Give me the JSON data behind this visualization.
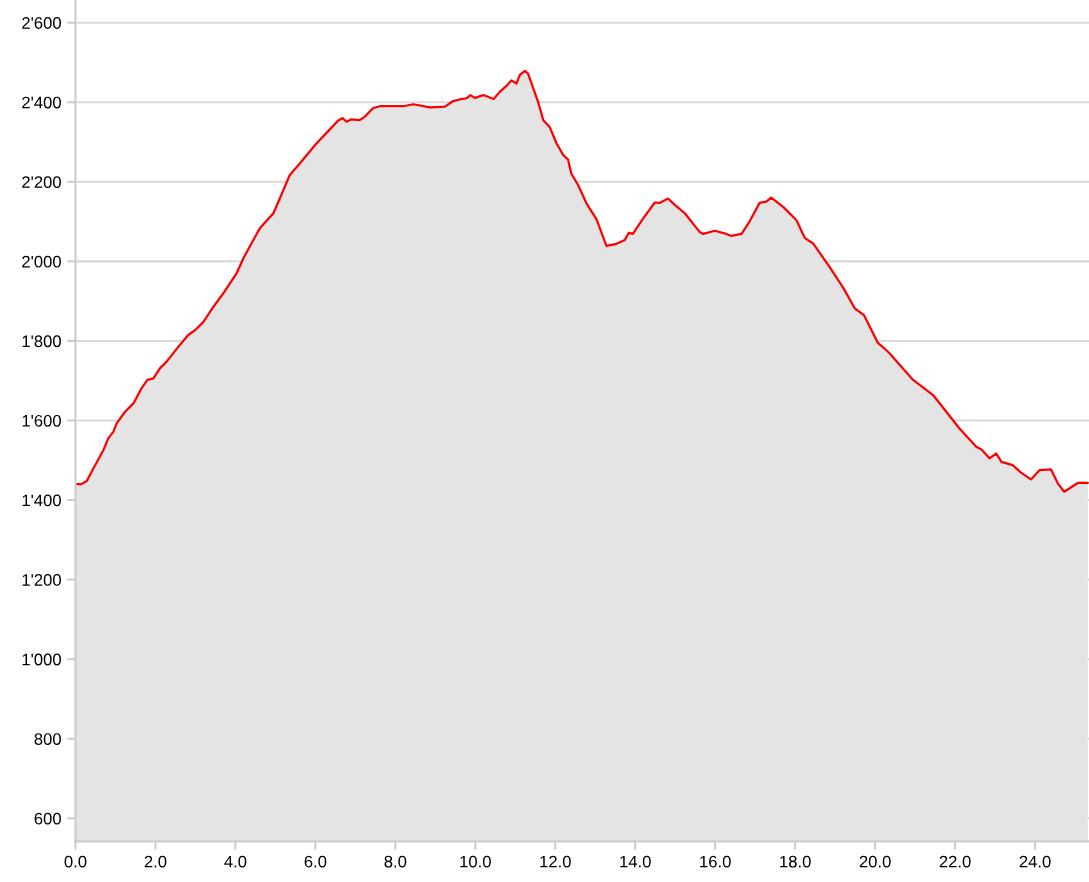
{
  "chart_data": {
    "type": "area",
    "x": [
      0,
      0.15,
      0.28,
      0.45,
      0.7,
      0.82,
      0.95,
      1.03,
      1.24,
      1.45,
      1.65,
      1.8,
      1.95,
      2.11,
      2.28,
      2.57,
      2.82,
      2.99,
      3.2,
      3.45,
      3.7,
      4.03,
      4.2,
      4.4,
      4.61,
      4.95,
      5.11,
      5.36,
      5.61,
      6.03,
      6.28,
      6.57,
      6.68,
      6.78,
      6.9,
      7.11,
      7.24,
      7.44,
      7.61,
      8.2,
      8.45,
      8.86,
      9.24,
      9.45,
      9.61,
      9.78,
      9.88,
      9.99,
      10.2,
      10.46,
      10.61,
      10.78,
      10.9,
      11.03,
      11.11,
      11.24,
      11.32,
      11.45,
      11.57,
      11.7,
      11.86,
      12.03,
      12.2,
      12.32,
      12.4,
      12.57,
      12.78,
      13.03,
      13.28,
      13.53,
      13.74,
      13.84,
      13.94,
      14.2,
      14.49,
      14.61,
      14.82,
      14.99,
      15.24,
      15.61,
      15.7,
      15.99,
      16.28,
      16.4,
      16.66,
      16.86,
      17.11,
      17.28,
      17.4,
      17.7,
      18.03,
      18.24,
      18.45,
      18.86,
      19.2,
      19.49,
      19.72,
      20.07,
      20.2,
      20.36,
      20.95,
      21.45,
      22.11,
      22.53,
      22.66,
      22.86,
      23.03,
      23.16,
      23.44,
      23.65,
      23.9,
      24.11,
      24.4,
      24.57,
      24.73,
      25.07,
      25.32
    ],
    "series": [
      {
        "color": "#ff0000",
        "values": [
          1440,
          1440,
          1448,
          1480,
          1526,
          1555,
          1572,
          1593,
          1622,
          1643,
          1681,
          1702,
          1706,
          1731,
          1748,
          1785,
          1815,
          1827,
          1848,
          1886,
          1920,
          1970,
          2008,
          2045,
          2083,
          2121,
          2158,
          2217,
          2246,
          2297,
          2323,
          2354,
          2360,
          2351,
          2357,
          2355,
          2364,
          2385,
          2390,
          2390,
          2395,
          2387,
          2389,
          2403,
          2407,
          2410,
          2418,
          2411,
          2418,
          2408,
          2426,
          2441,
          2455,
          2447,
          2468,
          2479,
          2472,
          2435,
          2401,
          2355,
          2338,
          2297,
          2267,
          2256,
          2221,
          2192,
          2146,
          2106,
          2039,
          2044,
          2054,
          2072,
          2069,
          2108,
          2148,
          2147,
          2158,
          2142,
          2121,
          2074,
          2069,
          2077,
          2069,
          2064,
          2069,
          2100,
          2147,
          2150,
          2160,
          2137,
          2104,
          2059,
          2045,
          1986,
          1934,
          1882,
          1865,
          1795,
          1784,
          1769,
          1702,
          1664,
          1580,
          1534,
          1527,
          1505,
          1517,
          1496,
          1488,
          1469,
          1452,
          1475,
          1477,
          1442,
          1421,
          1443,
          1443
        ]
      }
    ],
    "xlim": [
      0,
      25.35
    ],
    "ylim": [
      542,
      2657
    ],
    "xticks": [
      {
        "value": 0,
        "label": "0.0"
      },
      {
        "value": 2,
        "label": "2.0"
      },
      {
        "value": 4,
        "label": "4.0"
      },
      {
        "value": 6,
        "label": "6.0"
      },
      {
        "value": 8,
        "label": "8.0"
      },
      {
        "value": 10,
        "label": "10.0"
      },
      {
        "value": 12,
        "label": "12.0"
      },
      {
        "value": 14,
        "label": "14.0"
      },
      {
        "value": 16,
        "label": "16.0"
      },
      {
        "value": 18,
        "label": "18.0"
      },
      {
        "value": 20,
        "label": "20.0"
      },
      {
        "value": 22,
        "label": "22.0"
      },
      {
        "value": 24,
        "label": "24.0"
      }
    ],
    "yticks": [
      600,
      800,
      {
        "value": 1000,
        "label": "1'000"
      },
      {
        "value": 1200,
        "label": "1'200"
      },
      {
        "value": 1400,
        "label": "1'400"
      },
      {
        "value": 1600,
        "label": "1'600"
      },
      {
        "value": 1800,
        "label": "1'800"
      },
      {
        "value": 2000,
        "label": "2'000"
      },
      {
        "value": 2200,
        "label": "2'200"
      },
      {
        "value": 2400,
        "label": "2'400"
      },
      {
        "value": 2600,
        "label": "2'600"
      }
    ],
    "grid": "y"
  }
}
